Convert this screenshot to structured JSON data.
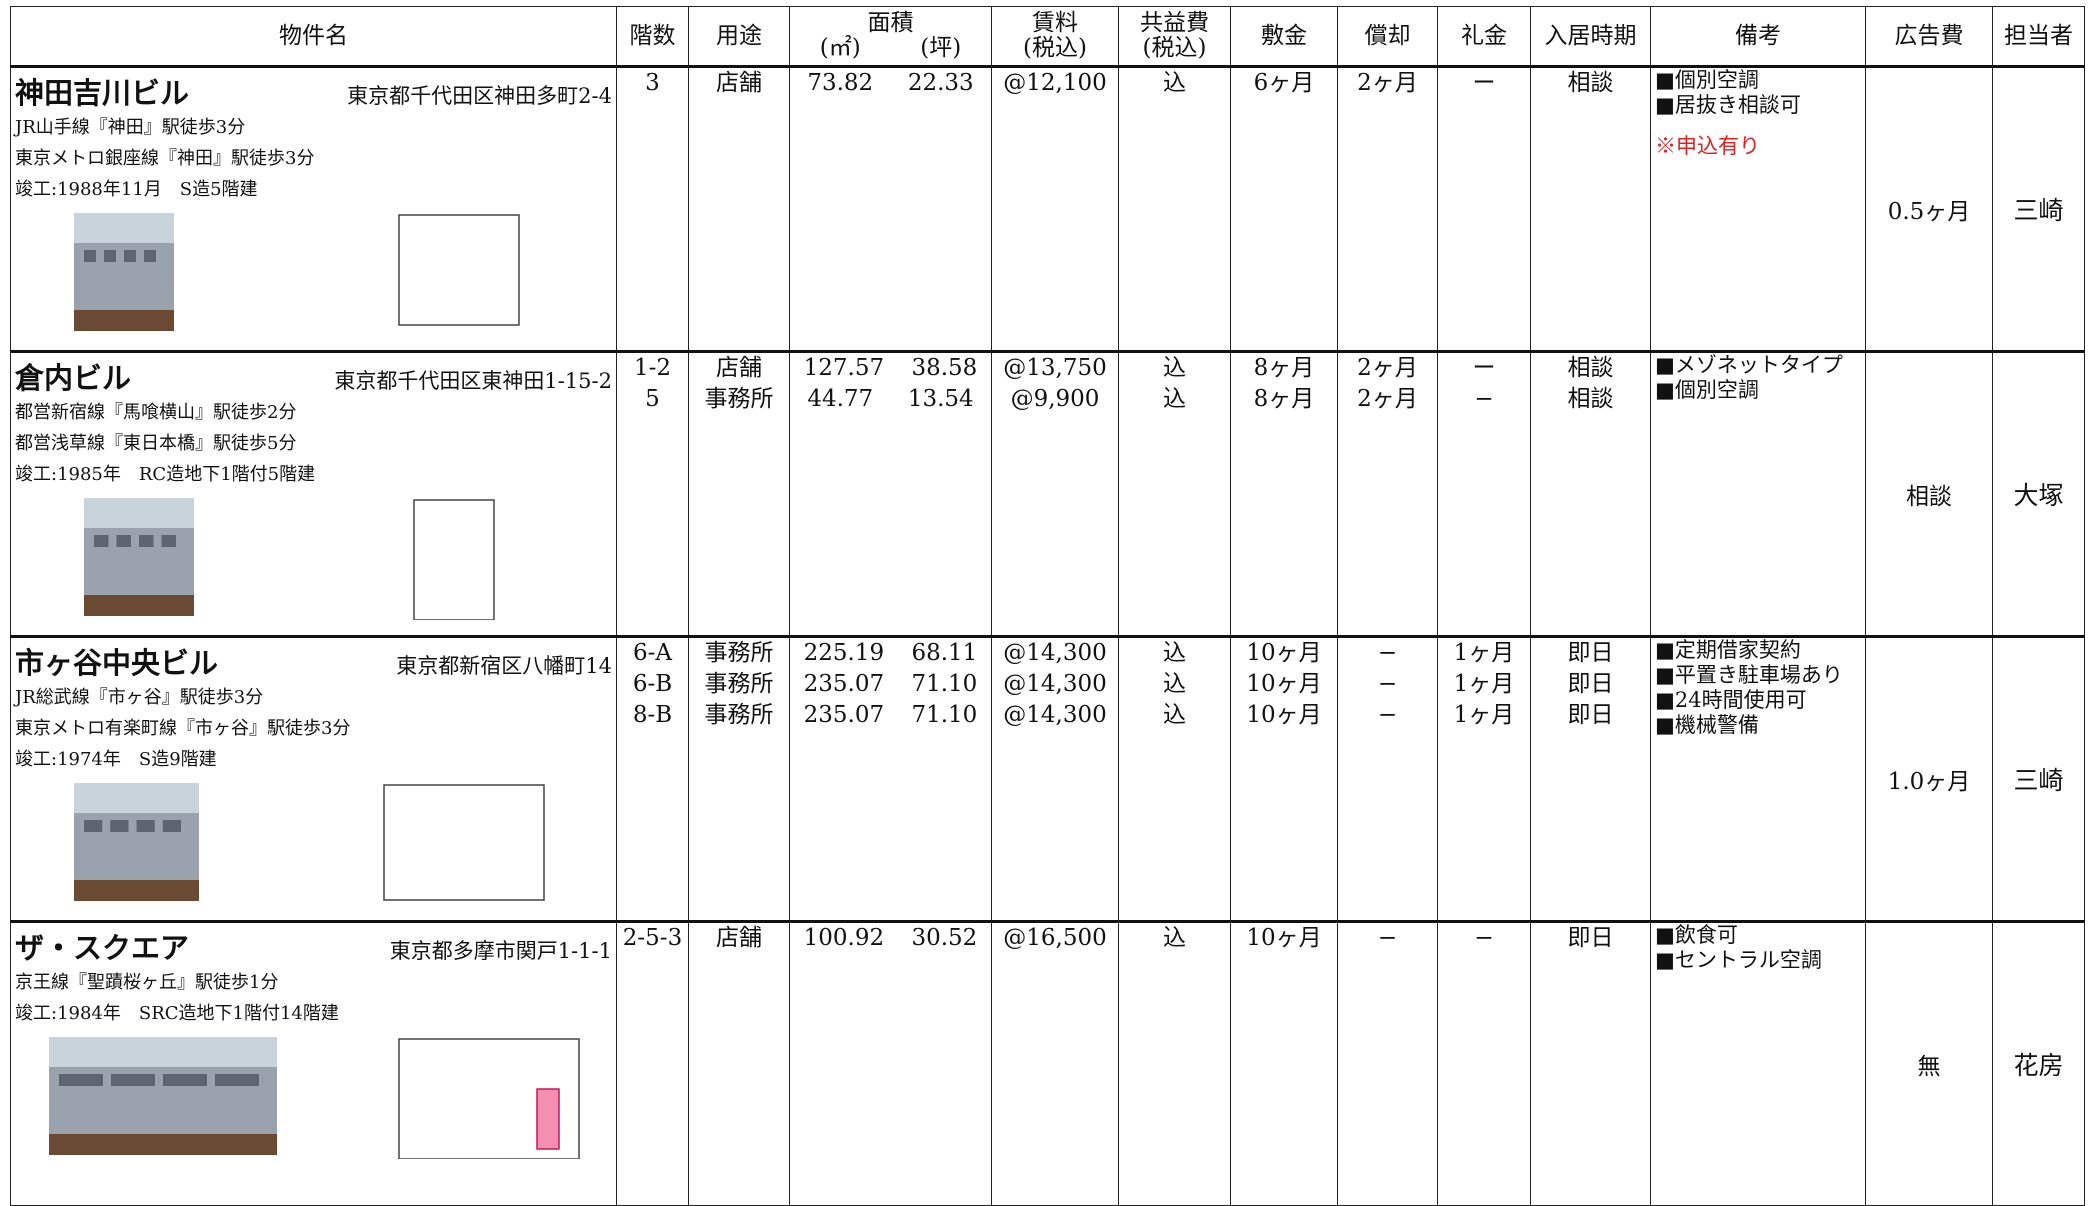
{
  "header": {
    "property": "物件名",
    "floor": "階数",
    "use": "用途",
    "area": "面積",
    "area_sqm": "(㎡)",
    "area_tsubo": "(坪)",
    "rent": [
      "賃料",
      "(税込)"
    ],
    "common_fee": [
      "共益費",
      "(税込)"
    ],
    "deposit": "敷金",
    "amortization": "償却",
    "key_money": "礼金",
    "move_in": "入居時期",
    "remarks": "備考",
    "ad_fee": "広告費",
    "staff": "担当者"
  },
  "properties": [
    {
      "name": "神田吉川ビル",
      "address": "東京都千代田区神田多町2-4",
      "access": [
        "JR山手線『神田』駅徒歩3分",
        "東京メトロ銀座線『神田』駅徒歩3分"
      ],
      "built": "竣工:1988年11月　S造5階建",
      "units": [
        {
          "floor": "3",
          "use": "店舗",
          "sqm": "73.82",
          "tsubo": "22.33",
          "rent": "@12,100",
          "common": "込",
          "deposit": "6ヶ月",
          "amort": "2ヶ月",
          "key": "ー",
          "move_in": "相談"
        }
      ],
      "remarks": [
        "■個別空調",
        "■居抜き相談可"
      ],
      "note": "※申込有り",
      "ad_fee": "0.5ヶ月",
      "staff": "三崎"
    },
    {
      "name": "倉内ビル",
      "address": "東京都千代田区東神田1-15-2",
      "access": [
        "都営新宿線『馬喰横山』駅徒歩2分",
        "都営浅草線『東日本橋』駅徒歩5分"
      ],
      "built": "竣工:1985年　RC造地下1階付5階建",
      "units": [
        {
          "floor": "1-2",
          "use": "店舗",
          "sqm": "127.57",
          "tsubo": "38.58",
          "rent": "@13,750",
          "common": "込",
          "deposit": "8ヶ月",
          "amort": "2ヶ月",
          "key": "ー",
          "move_in": "相談"
        },
        {
          "floor": "5",
          "use": "事務所",
          "sqm": "44.77",
          "tsubo": "13.54",
          "rent": "@9,900",
          "common": "込",
          "deposit": "8ヶ月",
          "amort": "2ヶ月",
          "key": "−",
          "move_in": "相談"
        }
      ],
      "remarks": [
        "■メゾネットタイプ",
        "■個別空調"
      ],
      "ad_fee": "相談",
      "staff": "大塚"
    },
    {
      "name": "市ヶ谷中央ビル",
      "address": "東京都新宿区八幡町14",
      "access": [
        "JR総武線『市ヶ谷』駅徒歩3分",
        "東京メトロ有楽町線『市ヶ谷』駅徒歩3分"
      ],
      "built": "竣工:1974年　S造9階建",
      "units": [
        {
          "floor": "6-A",
          "use": "事務所",
          "sqm": "225.19",
          "tsubo": "68.11",
          "rent": "@14,300",
          "common": "込",
          "deposit": "10ヶ月",
          "amort": "−",
          "key": "1ヶ月",
          "move_in": "即日"
        },
        {
          "floor": "6-B",
          "use": "事務所",
          "sqm": "235.07",
          "tsubo": "71.10",
          "rent": "@14,300",
          "common": "込",
          "deposit": "10ヶ月",
          "amort": "−",
          "key": "1ヶ月",
          "move_in": "即日"
        },
        {
          "floor": "8-B",
          "use": "事務所",
          "sqm": "235.07",
          "tsubo": "71.10",
          "rent": "@14,300",
          "common": "込",
          "deposit": "10ヶ月",
          "amort": "−",
          "key": "1ヶ月",
          "move_in": "即日"
        }
      ],
      "remarks": [
        "■定期借家契約",
        "■平置き駐車場あり",
        "■24時間使用可",
        "■機械警備"
      ],
      "ad_fee": "1.0ヶ月",
      "staff": "三崎"
    },
    {
      "name": "ザ・スクエア",
      "address": "東京都多摩市関戸1-1-1",
      "access": [
        "京王線『聖蹟桜ヶ丘』駅徒歩1分"
      ],
      "built": "竣工:1984年　SRC造地下1階付14階建",
      "units": [
        {
          "floor": "2-5-3",
          "use": "店舗",
          "sqm": "100.92",
          "tsubo": "30.52",
          "rent": "@16,500",
          "common": "込",
          "deposit": "10ヶ月",
          "amort": "−",
          "key": "−",
          "move_in": "即日"
        }
      ],
      "remarks": [
        "■飲食可",
        "■セントラル空調"
      ],
      "ad_fee": "無",
      "staff": "花房"
    }
  ]
}
